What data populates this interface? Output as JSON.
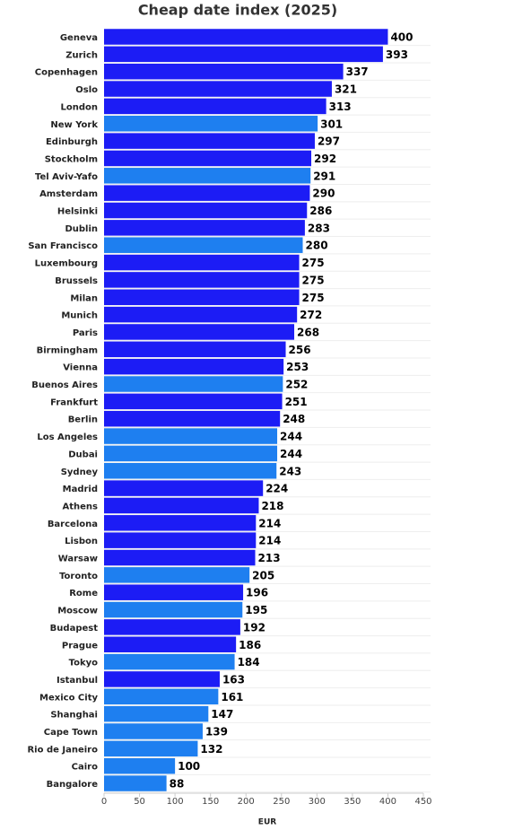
{
  "chart_data": {
    "type": "barh",
    "title": "Cheap date index (2025)",
    "x_label": "EUR",
    "categories": [
      "Geneva",
      "Zurich",
      "Copenhagen",
      "Oslo",
      "London",
      "New York",
      "Edinburgh",
      "Stockholm",
      "Tel Aviv-Yafo",
      "Amsterdam",
      "Helsinki",
      "Dublin",
      "San Francisco",
      "Luxembourg",
      "Brussels",
      "Milan",
      "Munich",
      "Paris",
      "Birmingham",
      "Vienna",
      "Buenos Aires",
      "Frankfurt",
      "Berlin",
      "Los Angeles",
      "Dubai",
      "Sydney",
      "Madrid",
      "Athens",
      "Barcelona",
      "Lisbon",
      "Warsaw",
      "Toronto",
      "Rome",
      "Moscow",
      "Budapest",
      "Prague",
      "Tokyo",
      "Istanbul",
      "Mexico City",
      "Shanghai",
      "Cape Town",
      "Rio de Janeiro",
      "Cairo",
      "Bangalore"
    ],
    "values": [
      400,
      393,
      337,
      321,
      313,
      301,
      297,
      292,
      291,
      290,
      286,
      283,
      280,
      275,
      275,
      275,
      272,
      268,
      256,
      253,
      252,
      251,
      248,
      244,
      244,
      243,
      224,
      218,
      214,
      214,
      213,
      205,
      196,
      195,
      192,
      186,
      184,
      163,
      161,
      147,
      139,
      132,
      100,
      88
    ],
    "colors": [
      "#1c1cf5",
      "#1c1cf5",
      "#1c1cf5",
      "#1c1cf5",
      "#1c1cf5",
      "#1e7ff0",
      "#1c1cf5",
      "#1c1cf5",
      "#1e7ff0",
      "#1c1cf5",
      "#1c1cf5",
      "#1c1cf5",
      "#1e7ff0",
      "#1c1cf5",
      "#1c1cf5",
      "#1c1cf5",
      "#1c1cf5",
      "#1c1cf5",
      "#1c1cf5",
      "#1c1cf5",
      "#1e7ff0",
      "#1c1cf5",
      "#1c1cf5",
      "#1e7ff0",
      "#1e7ff0",
      "#1e7ff0",
      "#1c1cf5",
      "#1c1cf5",
      "#1c1cf5",
      "#1c1cf5",
      "#1c1cf5",
      "#1e7ff0",
      "#1c1cf5",
      "#1e7ff0",
      "#1c1cf5",
      "#1c1cf5",
      "#1e7ff0",
      "#1c1cf5",
      "#1e7ff0",
      "#1e7ff0",
      "#1e7ff0",
      "#1e7ff0",
      "#1e7ff0",
      "#1e7ff0"
    ],
    "xlim": [
      0,
      450
    ],
    "xticks": [
      0,
      50,
      100,
      150,
      200,
      250,
      300,
      350,
      400,
      450
    ]
  }
}
